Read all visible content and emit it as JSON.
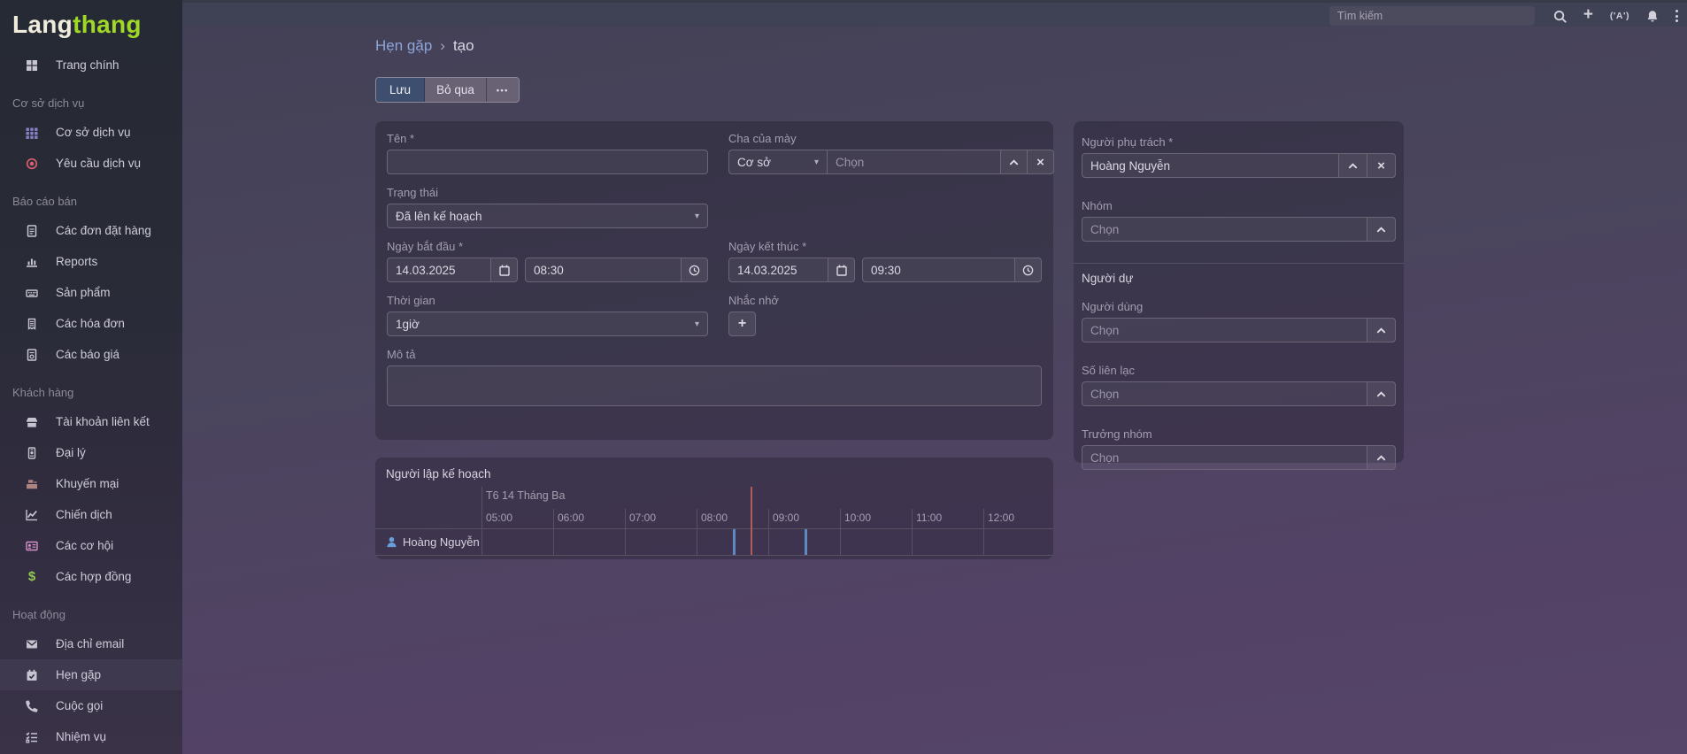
{
  "logo": {
    "part1": "Lang",
    "part2": "thang"
  },
  "topbar": {
    "search_placeholder": "Tìm kiếm",
    "broadcast_glyph": "('A')",
    "icons": [
      "search-icon",
      "quick-create-plus-icon",
      "broadcast-icon",
      "notifications-bell-icon",
      "menu-kebab-icon"
    ]
  },
  "sidebar": {
    "items": [
      {
        "type": "link",
        "label": "Trang chính",
        "icon": "grid4"
      },
      {
        "type": "section",
        "label": "Cơ sở dịch vụ"
      },
      {
        "type": "link",
        "label": "Cơ sở dịch vụ",
        "icon": "grid9",
        "color": "#8781c6"
      },
      {
        "type": "link",
        "label": "Yêu cầu dịch vụ",
        "icon": "dot-circle",
        "color": "#d4606e"
      },
      {
        "type": "section",
        "label": "Báo cáo bán"
      },
      {
        "type": "link",
        "label": "Các đơn đặt hàng",
        "icon": "file-lines"
      },
      {
        "type": "link",
        "label": "Reports",
        "icon": "chart-bar"
      },
      {
        "type": "link",
        "label": "Sản phẩm",
        "icon": "keyboard"
      },
      {
        "type": "link",
        "label": "Các hóa đơn",
        "icon": "receipt"
      },
      {
        "type": "link",
        "label": "Các báo giá",
        "icon": "file-invoice"
      },
      {
        "type": "section",
        "label": "Khách hàng"
      },
      {
        "type": "link",
        "label": "Tài khoản liên kết",
        "icon": "store"
      },
      {
        "type": "link",
        "label": "Đại lý",
        "icon": "id-badge"
      },
      {
        "type": "link",
        "label": "Khuyến mại",
        "icon": "cash-register",
        "color": "#ad8480"
      },
      {
        "type": "link",
        "label": "Chiến dịch",
        "icon": "chart-line"
      },
      {
        "type": "link",
        "label": "Các cơ hội",
        "icon": "id-card",
        "color": "#d691cb"
      },
      {
        "type": "link",
        "label": "Các hợp đồng",
        "icon": "dollar",
        "color": "#92c94f"
      },
      {
        "type": "section",
        "label": "Hoạt động"
      },
      {
        "type": "link",
        "label": "Địa chỉ email",
        "icon": "envelope"
      },
      {
        "type": "link",
        "label": "Hẹn gặp",
        "icon": "calendar-check",
        "active": true
      },
      {
        "type": "link",
        "label": "Cuộc gọi",
        "icon": "phone"
      },
      {
        "type": "link",
        "label": "Nhiệm vụ",
        "icon": "tasks"
      }
    ]
  },
  "breadcrumb": {
    "parent": "Hẹn gặp",
    "separator": "›",
    "current": "tạo"
  },
  "actions": {
    "save": "Lưu",
    "cancel": "Bỏ qua",
    "more": "•••"
  },
  "form": {
    "name": {
      "label": "Tên *",
      "value": ""
    },
    "parent": {
      "label": "Cha của mày",
      "type_value": "Cơ sở",
      "placeholder": "Chọn"
    },
    "status": {
      "label": "Trạng thái",
      "value": "Đã lên kế hoạch"
    },
    "date_start": {
      "label": "Ngày bắt đầu *",
      "date": "14.03.2025",
      "time": "08:30"
    },
    "date_end": {
      "label": "Ngày kết thúc *",
      "date": "14.03.2025",
      "time": "09:30"
    },
    "duration": {
      "label": "Thời gian",
      "value": "1giờ"
    },
    "reminders": {
      "label": "Nhắc nhở",
      "add_glyph": "+"
    },
    "description": {
      "label": "Mô tả",
      "value": ""
    }
  },
  "side_panel": {
    "assigned_user": {
      "label": "Người phụ trách *",
      "value": "Hoàng Nguyễn"
    },
    "teams": {
      "label": "Nhóm",
      "placeholder": "Chọn"
    },
    "attendees_header": "Người dự",
    "users": {
      "label": "Người dùng",
      "placeholder": "Chọn"
    },
    "contacts": {
      "label": "Số liên lạc",
      "placeholder": "Chọn"
    },
    "leads": {
      "label": "Trưởng nhóm",
      "placeholder": "Chọn"
    }
  },
  "scheduler": {
    "title": "Người lập kế hoạch",
    "date_label": "T6 14 Tháng Ba",
    "axis_start": "05:00",
    "ticks": [
      "05:00",
      "06:00",
      "07:00",
      "08:00",
      "09:00",
      "10:00",
      "11:00",
      "12:00"
    ],
    "row_user": "Hoàng Nguyễn",
    "event_start": "08:30",
    "event_end": "09:30",
    "current_time": "08:45"
  },
  "glyphs": {
    "caret_down": "▾",
    "clear": "×"
  },
  "colors": {
    "save_button": "#3e4e6e",
    "breadcrumb_link": "#8da5d8",
    "logo_green": "#a0d827",
    "current_time_line": "#b35b5b",
    "event_mark": "#5d8ac2"
  }
}
